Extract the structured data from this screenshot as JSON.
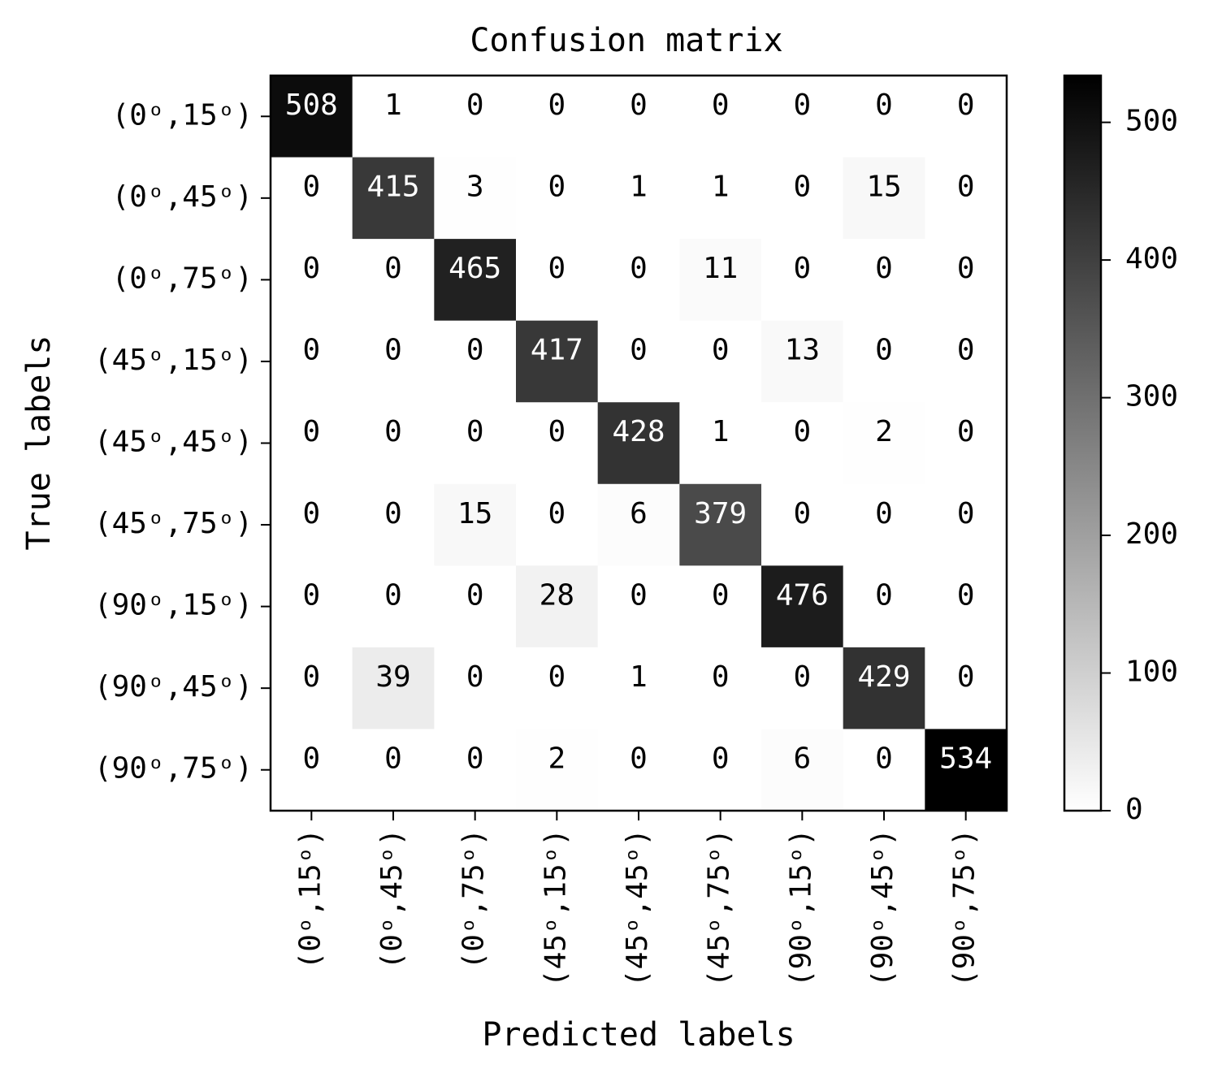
{
  "chart_data": {
    "type": "heatmap",
    "title": "Confusion matrix",
    "x_label": "Predicted labels",
    "y_label": "True labels",
    "x_categories": [
      "(0ᵒ,15ᵒ)",
      "(0ᵒ,45ᵒ)",
      "(0ᵒ,75ᵒ)",
      "(45ᵒ,15ᵒ)",
      "(45ᵒ,45ᵒ)",
      "(45ᵒ,75ᵒ)",
      "(90ᵒ,15ᵒ)",
      "(90ᵒ,45ᵒ)",
      "(90ᵒ,75ᵒ)"
    ],
    "y_categories": [
      "(0ᵒ,15ᵒ)",
      "(0ᵒ,45ᵒ)",
      "(0ᵒ,75ᵒ)",
      "(45ᵒ,15ᵒ)",
      "(45ᵒ,45ᵒ)",
      "(45ᵒ,75ᵒ)",
      "(90ᵒ,15ᵒ)",
      "(90ᵒ,45ᵒ)",
      "(90ᵒ,75ᵒ)"
    ],
    "values": [
      [
        508,
        1,
        0,
        0,
        0,
        0,
        0,
        0,
        0
      ],
      [
        0,
        415,
        3,
        0,
        1,
        1,
        0,
        15,
        0
      ],
      [
        0,
        0,
        465,
        0,
        0,
        11,
        0,
        0,
        0
      ],
      [
        0,
        0,
        0,
        417,
        0,
        0,
        13,
        0,
        0
      ],
      [
        0,
        0,
        0,
        0,
        428,
        1,
        0,
        2,
        0
      ],
      [
        0,
        0,
        15,
        0,
        6,
        379,
        0,
        0,
        0
      ],
      [
        0,
        0,
        0,
        28,
        0,
        0,
        476,
        0,
        0
      ],
      [
        0,
        39,
        0,
        0,
        1,
        0,
        0,
        429,
        0
      ],
      [
        0,
        0,
        0,
        2,
        0,
        0,
        6,
        0,
        534
      ]
    ],
    "colormap": "Greys",
    "clim": [
      0,
      534
    ],
    "cticks": [
      0,
      100,
      200,
      300,
      400,
      500
    ]
  }
}
